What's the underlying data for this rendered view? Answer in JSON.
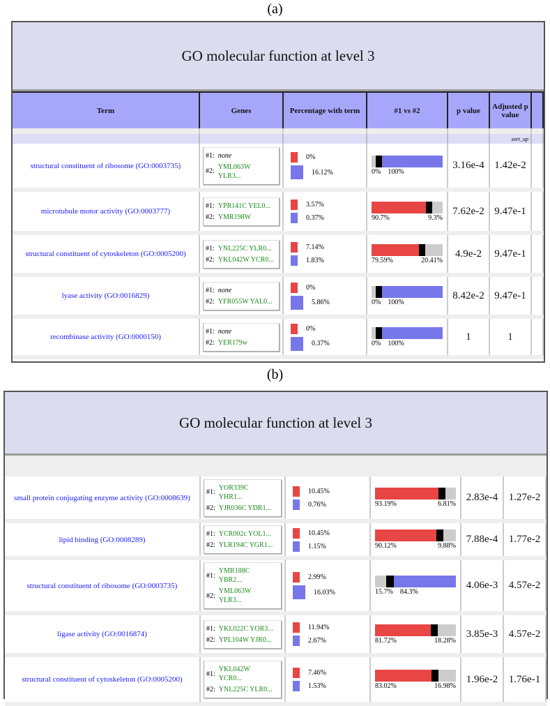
{
  "colors": {
    "group1": "#e84545",
    "group2": "#7777ea",
    "header": "#a6a6fb",
    "title_bg": "#dcdcf0",
    "term_link": "#1a1aff",
    "gene": "#1a8a1a"
  },
  "panels": [
    {
      "caption": "(a)",
      "title": "GO molecular function at level 3",
      "headers": [
        "Term",
        "Genes",
        "Percentage with term",
        "#1 vs #2",
        "p value",
        "Adjusted p value"
      ],
      "sort_label": "sort_up",
      "rows": [
        {
          "term": "structural constituent of ribosome (GO:0003735)",
          "g1": [
            "none"
          ],
          "g2": [
            "YML063W",
            "YLR3..."
          ],
          "p1": "0%",
          "p2": "16.12%",
          "r1": "0%",
          "r2": "100%",
          "ratio": 0,
          "pval": "3.16e-4",
          "adj": "1.42e-2"
        },
        {
          "term": "microtubule motor activity (GO:0003777)",
          "g1": [
            "YPR141C YEL0..."
          ],
          "g2": [
            "YMR198W"
          ],
          "p1": "3.57%",
          "p2": "0.37%",
          "r1": "90.7%",
          "r2": "9.3%",
          "ratio": 90.7,
          "pval": "7.62e-2",
          "adj": "9.47e-1"
        },
        {
          "term": "structural constituent of cytoskeleton (GO:0005200)",
          "g1": [
            "YNL225C YLR0..."
          ],
          "g2": [
            "YKL042W YCR0..."
          ],
          "p1": "7.14%",
          "p2": "1.83%",
          "r1": "79.59%",
          "r2": "20.41%",
          "ratio": 79.59,
          "pval": "4.9e-2",
          "adj": "9.47e-1"
        },
        {
          "term": "lyase activity (GO:0016829)",
          "g1": [
            "none"
          ],
          "g2": [
            "YFR055W YAL0..."
          ],
          "p1": "0%",
          "p2": "5.86%",
          "r1": "0%",
          "r2": "100%",
          "ratio": 0,
          "pval": "8.42e-2",
          "adj": "9.47e-1"
        },
        {
          "term": "recombinase activity (GO:0000150)",
          "g1": [
            "none"
          ],
          "g2": [
            "YER179w"
          ],
          "p1": "0%",
          "p2": "0.37%",
          "r1": "0%",
          "r2": "100%",
          "ratio": 0,
          "pval": "1",
          "adj": "1"
        }
      ]
    },
    {
      "caption": "(b)",
      "title": "GO molecular function at level 3",
      "rows": [
        {
          "term": "small protein conjugating enzyme activity (GO:0008639)",
          "g1": [
            "YOR339C",
            "YHR1..."
          ],
          "g2": [
            "YJR036C YDR1..."
          ],
          "p1": "10.45%",
          "p2": "0.76%",
          "r1": "93.19%",
          "r2": "6.81%",
          "ratio": 93.19,
          "pval": "2.83e-4",
          "adj": "1.27e-2"
        },
        {
          "term": "lipid binding (GO:0008289)",
          "g1": [
            "YCR002c YOL1..."
          ],
          "g2": [
            "YLR194C YGR1..."
          ],
          "p1": "10.45%",
          "p2": "1.15%",
          "r1": "90.12%",
          "r2": "9.88%",
          "ratio": 90.12,
          "pval": "7.88e-4",
          "adj": "1.77e-2"
        },
        {
          "term": "structural constituent of ribosome (GO:0003735)",
          "g1": [
            "YMR188C",
            "YBR2..."
          ],
          "g2": [
            "YML063W",
            "YLR3..."
          ],
          "p1": "2.99%",
          "p2": "16.03%",
          "r1": "15.7%",
          "r2": "84.3%",
          "ratio": 15.7,
          "pval": "4.06e-3",
          "adj": "4.57e-2"
        },
        {
          "term": "ligase activity (GO:0016874)",
          "g1": [
            "YKL022C YOR3..."
          ],
          "g2": [
            "YPL104W YJR0..."
          ],
          "p1": "11.94%",
          "p2": "2.67%",
          "r1": "81.72%",
          "r2": "18.28%",
          "ratio": 81.72,
          "pval": "3.85e-3",
          "adj": "4.57e-2"
        },
        {
          "term": "structural constituent of cytoskeleton (GO:0005200)",
          "g1": [
            "YKL042W",
            "YCR0..."
          ],
          "g2": [
            "YNL225C YLR0..."
          ],
          "p1": "7.46%",
          "p2": "1.53%",
          "r1": "83.02%",
          "r2": "16.98%",
          "ratio": 83.02,
          "pval": "1.96e-2",
          "adj": "1.76e-1"
        }
      ]
    }
  ],
  "labels": {
    "g1": "#1:",
    "g2": "#2:"
  }
}
